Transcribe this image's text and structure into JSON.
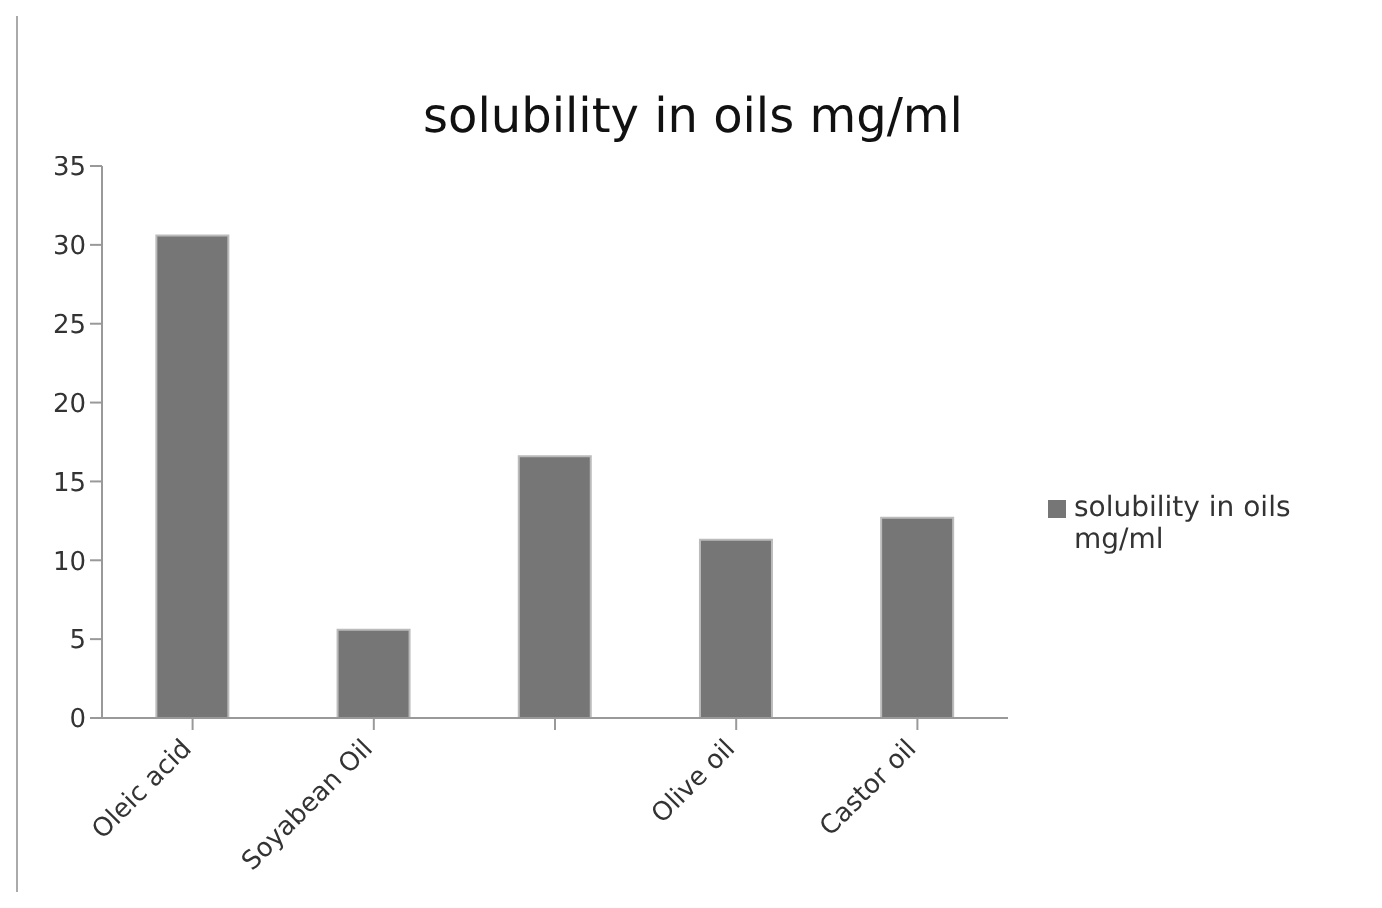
{
  "chart_data": {
    "type": "bar",
    "title": "solubility in oils mg/ml",
    "categories": [
      "Oleic acid",
      "Soyabean Oil",
      null,
      "Olive oil",
      "Castor oil"
    ],
    "series": [
      {
        "name": "solubility in oils mg/ml",
        "color": "#767676",
        "values": [
          30.6,
          5.6,
          16.6,
          11.3,
          12.7
        ]
      }
    ],
    "ylim": [
      0,
      35
    ],
    "yticks": [
      0,
      5,
      10,
      15,
      20,
      25,
      30,
      35
    ],
    "grid": false,
    "legend": "right"
  }
}
